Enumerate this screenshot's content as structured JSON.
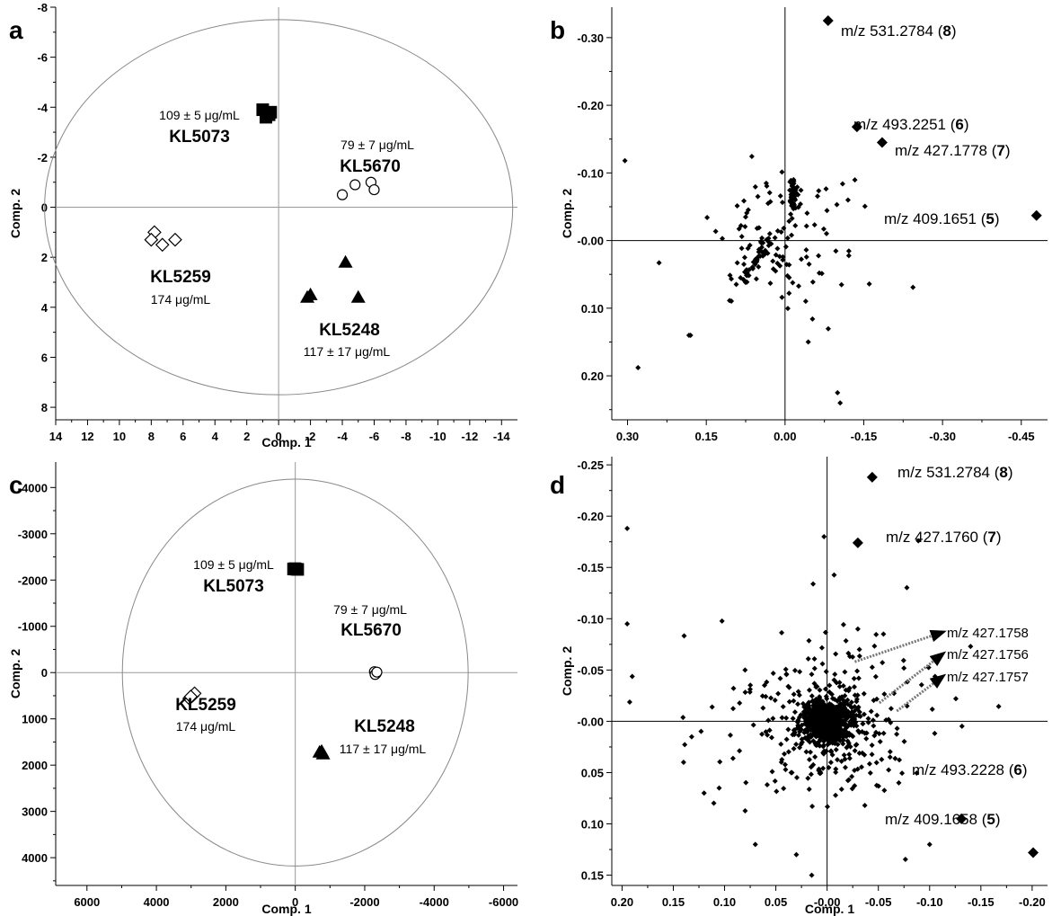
{
  "figure": {
    "panel_letters": [
      "a",
      "b",
      "c",
      "d"
    ]
  },
  "chart_data": [
    {
      "panel": "a",
      "type": "scatter",
      "xlabel": "Comp. 1",
      "ylabel": "Comp. 2",
      "xlim": [
        14,
        -15
      ],
      "ylim": [
        -8,
        8.5
      ],
      "x_ticks": [
        14,
        12,
        10,
        8,
        6,
        4,
        2,
        0,
        -2,
        -4,
        -6,
        -8,
        -10,
        -12,
        -14
      ],
      "y_ticks": [
        -8,
        -6,
        -4,
        -2,
        0,
        2,
        4,
        6,
        8
      ],
      "x_tick_labels": [
        "14",
        "12",
        "10",
        "8",
        "6",
        "4",
        "2",
        "0",
        "-2",
        "-4",
        "-6",
        "-8",
        "-10",
        "-12",
        "-14"
      ],
      "y_tick_labels": [
        "-8",
        "-6",
        "-4",
        "-2",
        "0",
        "2",
        "4",
        "6",
        "8"
      ],
      "ellipse": {
        "cx": 0,
        "cy": 0,
        "rx": 14.7,
        "ry": 7.5
      },
      "groups": [
        {
          "name": "KL5073",
          "conc": "109 ± 5 μg/mL",
          "marker": "square-filled",
          "points": [
            [
              1.0,
              -3.9
            ],
            [
              0.6,
              -3.7
            ],
            [
              0.8,
              -3.6
            ],
            [
              0.5,
              -3.8
            ]
          ]
        },
        {
          "name": "KL5670",
          "conc": "79 ± 7 μg/mL",
          "marker": "circle-open",
          "points": [
            [
              -4.0,
              -0.5
            ],
            [
              -4.8,
              -0.9
            ],
            [
              -5.8,
              -1.0
            ],
            [
              -6.0,
              -0.7
            ]
          ]
        },
        {
          "name": "KL5259",
          "conc": "174 μg/mL",
          "marker": "diamond-open",
          "points": [
            [
              7.8,
              1.0
            ],
            [
              8.0,
              1.3
            ],
            [
              7.3,
              1.5
            ],
            [
              6.5,
              1.3
            ]
          ]
        },
        {
          "name": "KL5248",
          "conc": "117 ± 17 μg/mL",
          "marker": "triangle-filled",
          "points": [
            [
              -4.2,
              2.2
            ],
            [
              -1.8,
              3.6
            ],
            [
              -2.0,
              3.5
            ],
            [
              -5.0,
              3.6
            ]
          ]
        }
      ]
    },
    {
      "panel": "b",
      "type": "scatter",
      "xlabel": "",
      "ylabel": "Comp. 2",
      "xlim": [
        0.33,
        -0.5
      ],
      "ylim": [
        -0.345,
        0.265
      ],
      "x_ticks": [
        0.3,
        0.15,
        0.0,
        -0.15,
        -0.3,
        -0.45
      ],
      "y_ticks": [
        -0.3,
        -0.2,
        -0.1,
        0.0,
        0.1,
        0.2
      ],
      "x_tick_labels": [
        "0.30",
        "0.15",
        "0.00",
        "-0.15",
        "-0.30",
        "-0.45"
      ],
      "y_tick_labels": [
        "-0.30",
        "-0.20",
        "-0.10",
        "-0.00",
        "0.10",
        "0.20"
      ],
      "labeled_points": [
        {
          "x": -0.082,
          "y": -0.325,
          "label": "m/z 531.2784 (",
          "num": "8"
        },
        {
          "x": -0.137,
          "y": -0.168,
          "label": "m/z 493.2251 (",
          "num": "6"
        },
        {
          "x": -0.185,
          "y": -0.145,
          "label": "m/z 427.1778 (",
          "num": "7"
        },
        {
          "x": -0.479,
          "y": -0.037,
          "label": "m/z 409.1651 (",
          "num": "5"
        }
      ]
    },
    {
      "panel": "c",
      "type": "scatter",
      "xlabel": "Comp. 1",
      "ylabel": "Comp. 2",
      "xlim": [
        6900,
        -6400
      ],
      "ylim": [
        -4550,
        4600
      ],
      "x_ticks": [
        6000,
        4000,
        2000,
        0,
        -2000,
        -4000,
        -6000
      ],
      "y_ticks": [
        -4000,
        -3000,
        -2000,
        -1000,
        0,
        1000,
        2000,
        3000,
        4000
      ],
      "x_tick_labels": [
        "6000",
        "4000",
        "2000",
        "0",
        "-2000",
        "-4000",
        "-6000"
      ],
      "y_tick_labels": [
        "-4000",
        "-3000",
        "-2000",
        "-1000",
        "0",
        "1000",
        "2000",
        "3000",
        "4000"
      ],
      "ellipse": {
        "cx": 0,
        "cy": 0,
        "rx": 4980,
        "ry": 4180
      },
      "groups": [
        {
          "name": "KL5073",
          "conc": "109 ± 5 μg/mL",
          "marker": "square-filled",
          "points": [
            [
              50,
              -2240
            ],
            [
              -20,
              -2235
            ],
            [
              -70,
              -2230
            ],
            [
              10,
              -2245
            ]
          ]
        },
        {
          "name": "KL5670",
          "conc": "79 ± 7 μg/mL",
          "marker": "circle-open",
          "points": [
            [
              -2280,
              -20
            ],
            [
              -2330,
              20
            ],
            [
              -2300,
              40
            ],
            [
              -2350,
              -10
            ]
          ]
        },
        {
          "name": "KL5259",
          "conc": "174 μg/mL",
          "marker": "diamond-open",
          "points": [
            [
              3050,
              560
            ],
            [
              2960,
              500
            ],
            [
              2900,
              450
            ],
            [
              3010,
              520
            ]
          ]
        },
        {
          "name": "KL5248",
          "conc": "117 ± 17 μg/mL",
          "marker": "triangle-filled",
          "points": [
            [
              -700,
              1720
            ],
            [
              -800,
              1760
            ],
            [
              -760,
              1700
            ]
          ]
        }
      ]
    },
    {
      "panel": "d",
      "type": "scatter",
      "xlabel": "Comp. 1",
      "ylabel": "Comp. 2",
      "xlim": [
        0.21,
        -0.215
      ],
      "ylim": [
        -0.258,
        0.16
      ],
      "x_ticks": [
        0.2,
        0.15,
        0.1,
        0.05,
        0.0,
        -0.05,
        -0.1,
        -0.15,
        -0.2
      ],
      "y_ticks": [
        -0.25,
        -0.2,
        -0.15,
        -0.1,
        -0.05,
        0.0,
        0.05,
        0.1,
        0.15
      ],
      "x_tick_labels": [
        "0.20",
        "0.15",
        "0.10",
        "0.05",
        "-0.00",
        "-0.05",
        "-0.10",
        "-0.15",
        "-0.20"
      ],
      "y_tick_labels": [
        "-0.25",
        "-0.20",
        "-0.15",
        "-0.10",
        "-0.05",
        "-0.00",
        "0.05",
        "0.10",
        "0.15"
      ],
      "labeled_points": [
        {
          "x": -0.044,
          "y": -0.238,
          "label": "m/z 531.2784 (",
          "num": "8"
        },
        {
          "x": -0.03,
          "y": -0.174,
          "label": "m/z 427.1760 (",
          "num": "7"
        },
        {
          "x": -0.131,
          "y": 0.095,
          "label": "m/z 493.2228 (",
          "num": "6"
        },
        {
          "x": -0.201,
          "y": 0.128,
          "label": "m/z 409.1658 (",
          "num": "5"
        }
      ],
      "arrow_labels": [
        {
          "from": [
            -0.027,
            -0.058
          ],
          "label": "m/z 427.1758"
        },
        {
          "from": [
            -0.051,
            -0.018
          ],
          "label": "m/z 427.1756"
        },
        {
          "from": [
            -0.068,
            -0.01
          ],
          "label": "m/z 427.1757"
        }
      ]
    }
  ]
}
